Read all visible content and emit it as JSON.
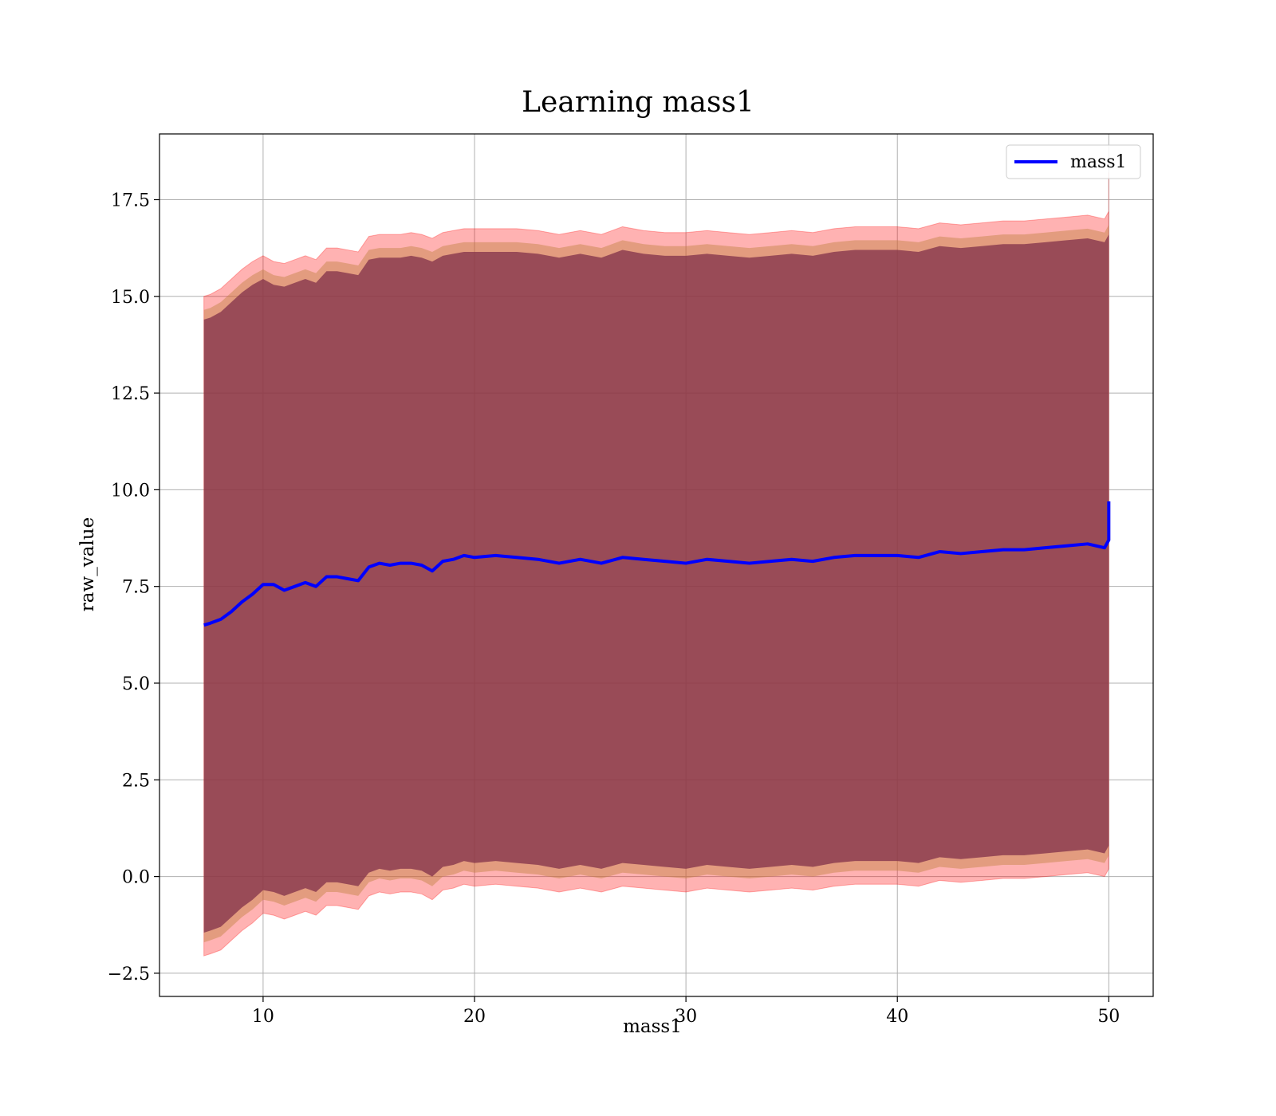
{
  "chart_data": {
    "type": "line",
    "title": "Learning mass1",
    "xlabel": "mass1",
    "ylabel": "raw_value",
    "xlim": [
      5.1,
      52.1
    ],
    "ylim": [
      -3.1,
      19.2
    ],
    "xticks": [
      10,
      20,
      30,
      40,
      50
    ],
    "xtick_labels": [
      "10",
      "20",
      "30",
      "40",
      "50"
    ],
    "yticks": [
      -2.5,
      0.0,
      2.5,
      5.0,
      7.5,
      10.0,
      12.5,
      15.0,
      17.5
    ],
    "ytick_labels": [
      "−2.5",
      "0.0",
      "2.5",
      "5.0",
      "7.5",
      "10.0",
      "12.5",
      "15.0",
      "17.5"
    ],
    "grid": true,
    "legend": {
      "position": "top-right",
      "entries": [
        "mass1"
      ]
    },
    "colors": {
      "line": "#0000ff",
      "band_outer": "#ff0000",
      "band_middle": "#c08040",
      "band_inner": "#80304a",
      "grid": "#b0b0b0"
    },
    "series": [
      {
        "name": "mass1",
        "x": [
          7.2,
          7.5,
          8.0,
          8.5,
          9.0,
          9.5,
          10.0,
          10.5,
          11.0,
          11.5,
          12.0,
          12.5,
          13.0,
          13.5,
          14.0,
          14.5,
          15.0,
          15.5,
          16.0,
          16.5,
          17.0,
          17.5,
          18.0,
          18.5,
          19.0,
          19.5,
          20.0,
          21.0,
          22.0,
          23.0,
          24.0,
          25.0,
          26.0,
          27.0,
          28.0,
          29.0,
          30.0,
          31.0,
          32.0,
          33.0,
          34.0,
          35.0,
          36.0,
          37.0,
          38.0,
          39.0,
          40.0,
          41.0,
          42.0,
          43.0,
          44.0,
          45.0,
          46.0,
          47.0,
          48.0,
          49.0,
          49.8,
          50.0,
          50.0
        ],
        "y": [
          6.5,
          6.55,
          6.65,
          6.85,
          7.1,
          7.3,
          7.55,
          7.55,
          7.4,
          7.5,
          7.6,
          7.5,
          7.75,
          7.75,
          7.7,
          7.65,
          8.0,
          8.1,
          8.05,
          8.1,
          8.1,
          8.05,
          7.9,
          8.15,
          8.2,
          8.3,
          8.25,
          8.3,
          8.25,
          8.2,
          8.1,
          8.2,
          8.1,
          8.25,
          8.2,
          8.15,
          8.1,
          8.2,
          8.15,
          8.1,
          8.15,
          8.2,
          8.15,
          8.25,
          8.3,
          8.3,
          8.3,
          8.25,
          8.4,
          8.35,
          8.4,
          8.45,
          8.45,
          8.5,
          8.55,
          8.6,
          8.5,
          8.7,
          9.7
        ],
        "band_upper": [
          15.0,
          15.05,
          15.2,
          15.45,
          15.7,
          15.9,
          16.05,
          15.9,
          15.85,
          15.95,
          16.05,
          15.95,
          16.25,
          16.25,
          16.2,
          16.15,
          16.55,
          16.6,
          16.6,
          16.6,
          16.65,
          16.6,
          16.5,
          16.65,
          16.7,
          16.75,
          16.75,
          16.75,
          16.75,
          16.7,
          16.6,
          16.7,
          16.6,
          16.8,
          16.7,
          16.65,
          16.65,
          16.7,
          16.65,
          16.6,
          16.65,
          16.7,
          16.65,
          16.75,
          16.8,
          16.8,
          16.8,
          16.75,
          16.9,
          16.85,
          16.9,
          16.95,
          16.95,
          17.0,
          17.05,
          17.1,
          17.0,
          17.2,
          18.2
        ],
        "band_lower": [
          -2.05,
          -2.0,
          -1.9,
          -1.65,
          -1.4,
          -1.2,
          -0.95,
          -1.0,
          -1.1,
          -1.0,
          -0.9,
          -1.0,
          -0.75,
          -0.75,
          -0.8,
          -0.85,
          -0.5,
          -0.4,
          -0.45,
          -0.4,
          -0.4,
          -0.45,
          -0.6,
          -0.35,
          -0.3,
          -0.2,
          -0.25,
          -0.2,
          -0.25,
          -0.3,
          -0.4,
          -0.3,
          -0.4,
          -0.25,
          -0.3,
          -0.35,
          -0.4,
          -0.3,
          -0.35,
          -0.4,
          -0.35,
          -0.3,
          -0.35,
          -0.25,
          -0.2,
          -0.2,
          -0.2,
          -0.25,
          -0.1,
          -0.15,
          -0.1,
          -0.05,
          -0.05,
          0.0,
          0.05,
          0.1,
          0.0,
          0.2,
          1.2
        ]
      }
    ]
  }
}
